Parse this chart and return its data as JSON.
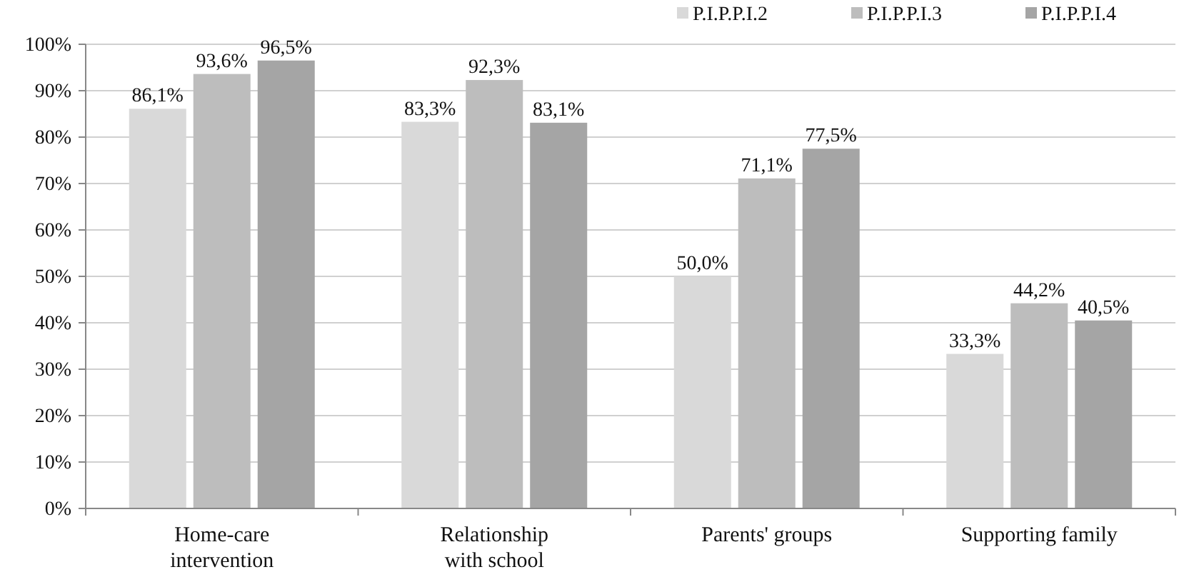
{
  "chart_data": {
    "type": "bar",
    "categories": [
      "Home-care intervention",
      "Relationship with school",
      "Parents' groups",
      "Supporting family"
    ],
    "series": [
      {
        "name": "P.I.P.P.I.2",
        "color": "#d9d9d9",
        "values": [
          86.1,
          83.3,
          50.0,
          33.3
        ],
        "value_labels": [
          "86,1%",
          "83,3%",
          "50,0%",
          "33,3%"
        ]
      },
      {
        "name": "P.I.P.P.I.3",
        "color": "#bdbdbd",
        "values": [
          93.6,
          92.3,
          71.1,
          44.2
        ],
        "value_labels": [
          "93,6%",
          "92,3%",
          "71,1%",
          "44,2%"
        ]
      },
      {
        "name": "P.I.P.P.I.4",
        "color": "#a5a5a5",
        "values": [
          96.5,
          83.1,
          77.5,
          40.5
        ],
        "value_labels": [
          "96,5%",
          "83,1%",
          "77,5%",
          "40,5%"
        ]
      }
    ],
    "ylim": [
      0,
      100
    ],
    "yticks": [
      {
        "value": 0,
        "label": "0%"
      },
      {
        "value": 10,
        "label": "10%"
      },
      {
        "value": 20,
        "label": "20%"
      },
      {
        "value": 30,
        "label": "30%"
      },
      {
        "value": 40,
        "label": "40%"
      },
      {
        "value": 50,
        "label": "50%"
      },
      {
        "value": 60,
        "label": "60%"
      },
      {
        "value": 70,
        "label": "70%"
      },
      {
        "value": 80,
        "label": "80%"
      },
      {
        "value": 90,
        "label": "90%"
      },
      {
        "value": 100,
        "label": "100%"
      }
    ],
    "grid": "y",
    "legend": "top right"
  }
}
